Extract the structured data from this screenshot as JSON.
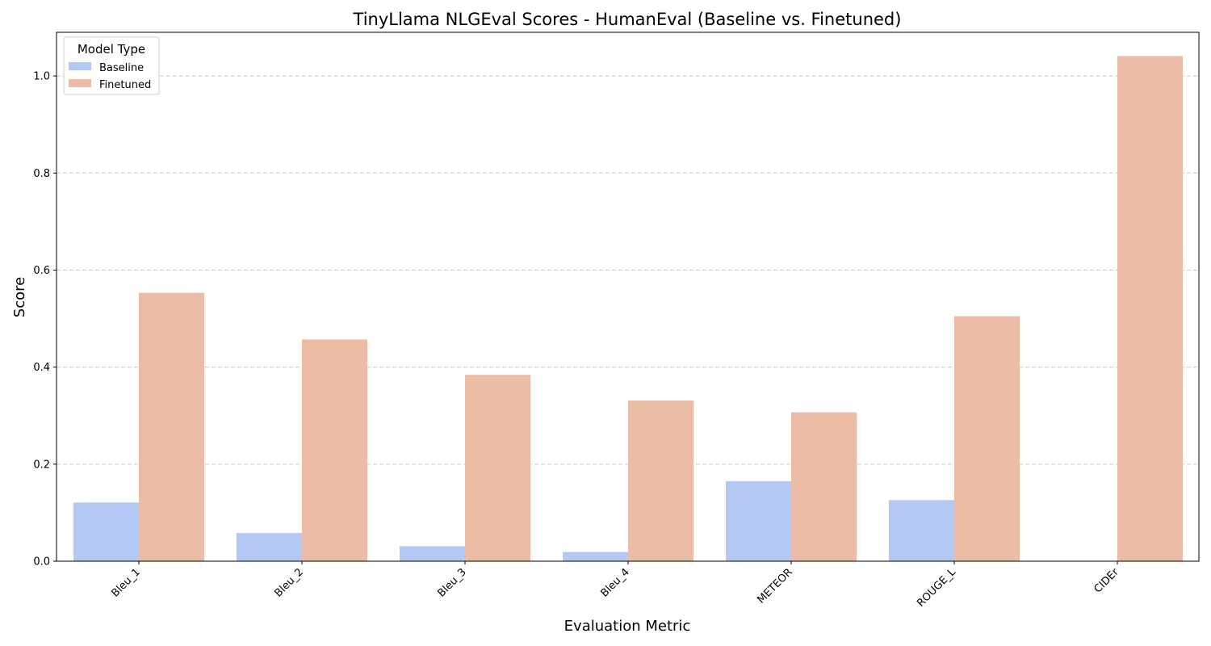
{
  "chart_data": {
    "type": "bar",
    "title": "TinyLlama NLGEval Scores - HumanEval (Baseline vs. Finetuned)",
    "xlabel": "Evaluation Metric",
    "ylabel": "Score",
    "categories": [
      "Bleu_1",
      "Bleu_2",
      "Bleu_3",
      "Bleu_4",
      "METEOR",
      "ROUGE_L",
      "CIDEr"
    ],
    "series": [
      {
        "name": "Baseline",
        "color": "#b3c8f3",
        "values": [
          0.121,
          0.058,
          0.031,
          0.019,
          0.165,
          0.126,
          0.0
        ]
      },
      {
        "name": "Finetuned",
        "color": "#ebbca6",
        "values": [
          0.553,
          0.457,
          0.384,
          0.331,
          0.307,
          0.505,
          1.041
        ]
      }
    ],
    "ylim": [
      0,
      1.09
    ],
    "yticks": [
      0.0,
      0.2,
      0.4,
      0.6,
      0.8,
      1.0
    ],
    "ytick_labels": [
      "0.0",
      "0.2",
      "0.4",
      "0.6",
      "0.8",
      "1.0"
    ],
    "grid": "y-dashed",
    "legend": {
      "title": "Model Type",
      "placement": "top-left"
    }
  }
}
